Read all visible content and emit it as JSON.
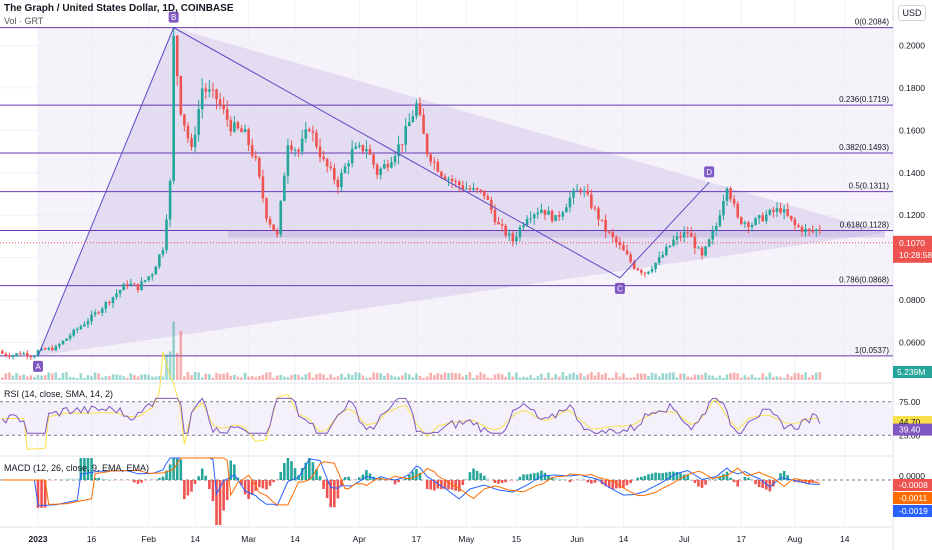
{
  "header": {
    "title": "The Graph / United States Dollar, 1D, COINBASE",
    "vol_label": "Vol · GRT",
    "currency_button": "USD"
  },
  "chart_data": {
    "type": "candlestick",
    "symbol": "GRT/USD",
    "price_axis": {
      "ticks": [
        0.2,
        0.18,
        0.16,
        0.14,
        0.12,
        0.1,
        0.08,
        0.06
      ],
      "labels": [
        "0.2000",
        "0.1800",
        "0.1600",
        "0.1400",
        "0.1200",
        "0.1000",
        "0.0800",
        "0.0600"
      ],
      "range": [
        0.048,
        0.212
      ]
    },
    "x_axis": {
      "labels": [
        "2023",
        "16",
        "Feb",
        "14",
        "Mar",
        "14",
        "Apr",
        "17",
        "May",
        "15",
        "Jun",
        "14",
        "Jul",
        "17",
        "Aug",
        "14"
      ]
    },
    "current_price": "0.1070",
    "countdown": "10:28:58",
    "volume_badge": "5.239M",
    "fibonacci": [
      {
        "level": "0",
        "price": 0.2084,
        "label": "0(0.2084)"
      },
      {
        "level": "0.236",
        "price": 0.1719,
        "label": "0.236(0.1719)"
      },
      {
        "level": "0.382",
        "price": 0.1493,
        "label": "0.382(0.1493)"
      },
      {
        "level": "0.5",
        "price": 0.1311,
        "label": "0.5(0.1311)"
      },
      {
        "level": "0.618",
        "price": 0.1128,
        "label": "0.618(0.1128)"
      },
      {
        "level": "0.786",
        "price": 0.0868,
        "label": "0.786(0.0868)"
      },
      {
        "level": "1",
        "price": 0.0537,
        "label": "1(0.0537)"
      }
    ],
    "pattern_points": [
      {
        "name": "A",
        "date": "2023-01-01",
        "price": 0.0537
      },
      {
        "name": "B",
        "date": "2023-02-08",
        "price": 0.2084
      },
      {
        "name": "C",
        "date": "2023-06-13",
        "price": 0.0905
      },
      {
        "name": "D",
        "date": "2023-07-08",
        "price": 0.1355
      }
    ],
    "rsi": {
      "label": "RSI (14, close, SMA, 14, 2)",
      "levels": [
        "75.00",
        "25.00"
      ],
      "value": "39.40",
      "sma": "44.70"
    },
    "macd": {
      "label": "MACD (12, 26, close, 9, EMA, EMA)",
      "values": [
        "-0.0008",
        "-0.0011",
        "-0.0019"
      ],
      "zero_label": "0.0000"
    },
    "colors": {
      "up": "#26a69a",
      "down": "#ef5350",
      "fib": "#673ab7",
      "fib_fill": "#ede7f6",
      "rsi": "#7e57c2",
      "macd": "#2962ff",
      "signal": "#ff6d00"
    }
  }
}
